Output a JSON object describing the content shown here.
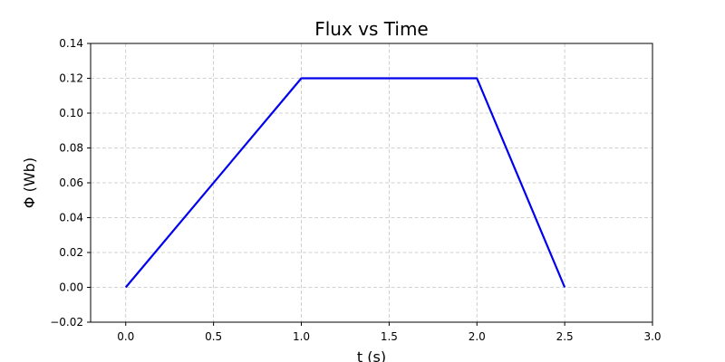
{
  "chart_data": {
    "type": "line",
    "title": "Flux vs Time",
    "xlabel": "t (s)",
    "ylabel": "Φ (Wb)",
    "xlim": [
      -0.2,
      3.0
    ],
    "ylim": [
      -0.02,
      0.14
    ],
    "xticks": [
      0.0,
      0.5,
      1.0,
      1.5,
      2.0,
      2.5,
      3.0
    ],
    "xtick_labels": [
      "0.0",
      "0.5",
      "1.0",
      "1.5",
      "2.0",
      "2.5",
      "3.0"
    ],
    "yticks": [
      -0.02,
      0.0,
      0.02,
      0.04,
      0.06,
      0.08,
      0.1,
      0.12,
      0.14
    ],
    "ytick_labels": [
      "−0.02",
      "0.00",
      "0.02",
      "0.04",
      "0.06",
      "0.08",
      "0.10",
      "0.12",
      "0.14"
    ],
    "grid": true,
    "series": [
      {
        "color": "#0000ee",
        "x": [
          0.0,
          1.0,
          2.0,
          2.5
        ],
        "y": [
          0.0,
          0.12,
          0.12,
          0.0
        ]
      }
    ]
  }
}
